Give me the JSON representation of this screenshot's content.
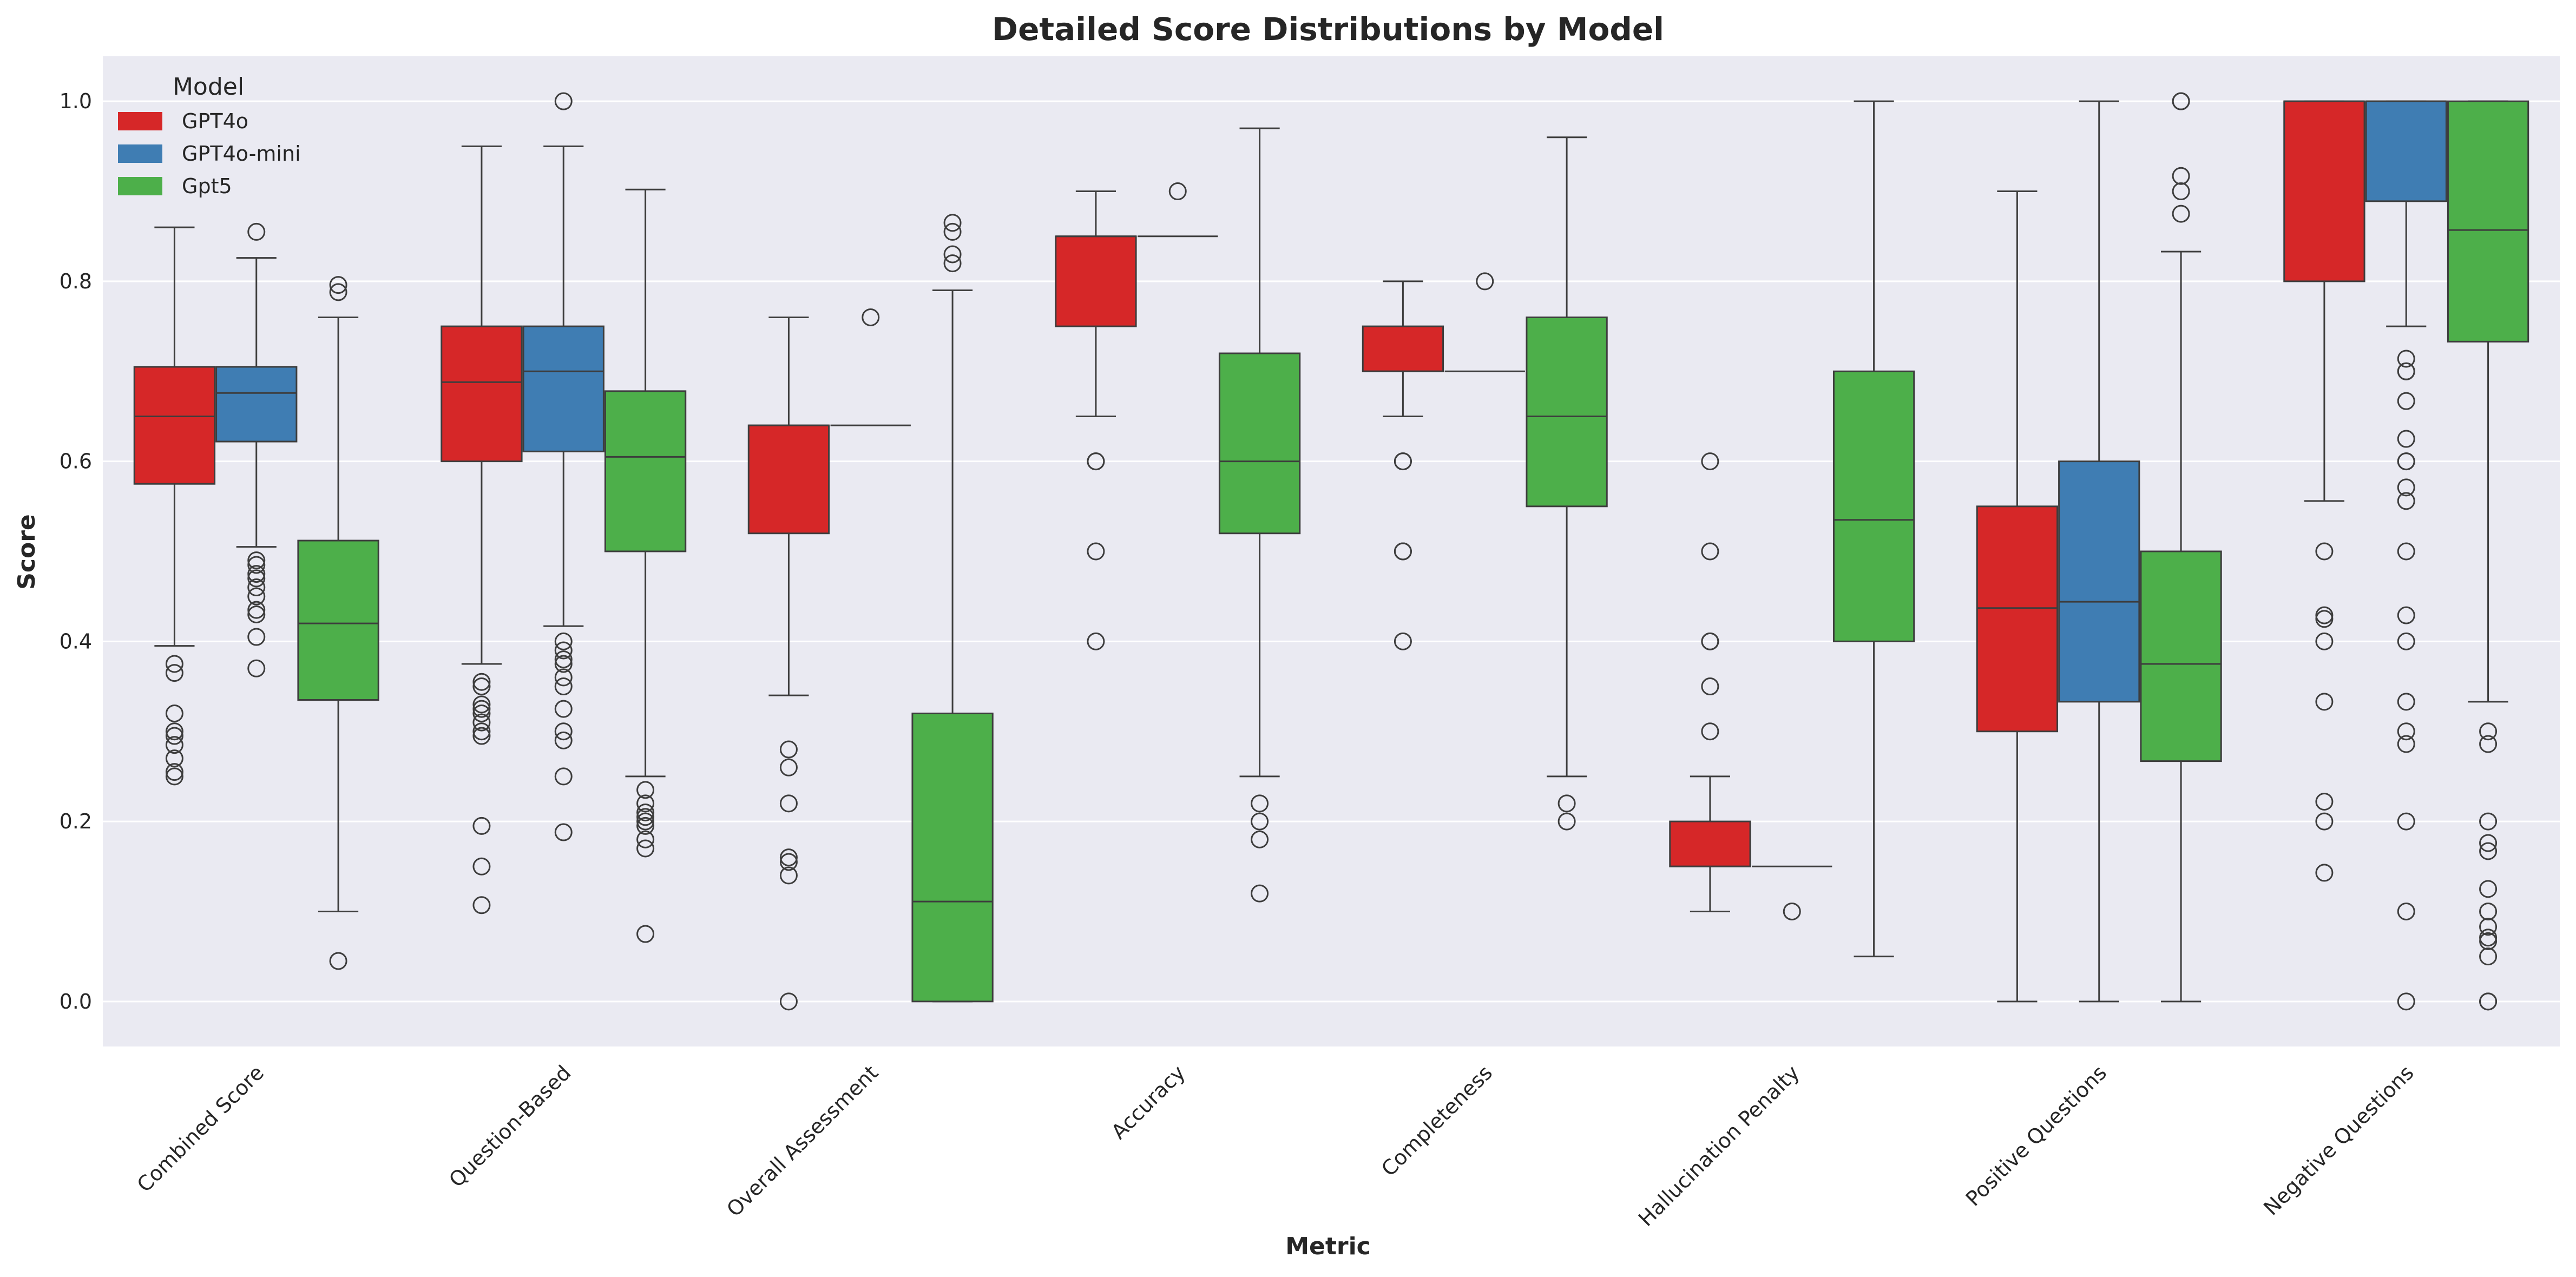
{
  "chart_data": {
    "type": "box",
    "title": "Detailed Score Distributions by Model",
    "xlabel": "Metric",
    "ylabel": "Score",
    "ylim": [
      -0.05,
      1.05
    ],
    "yticks": [
      "0.0",
      "0.2",
      "0.4",
      "0.6",
      "0.8",
      "1.0"
    ],
    "grid": true,
    "legend_title": "Model",
    "legend_placement": "top-left",
    "categories": [
      "Combined Score",
      "Question-Based",
      "Overall Assessment",
      "Accuracy",
      "Completeness",
      "Hallucination Penalty",
      "Positive Questions",
      "Negative Questions"
    ],
    "series": [
      {
        "name": "GPT4o",
        "color": "#d62728",
        "boxes": [
          {
            "whislo": 0.395,
            "q1": 0.575,
            "med": 0.65,
            "q3": 0.705,
            "whishi": 0.86,
            "fliers": [
              0.375,
              0.365,
              0.32,
              0.3,
              0.295,
              0.285,
              0.27,
              0.255,
              0.25
            ]
          },
          {
            "whislo": 0.375,
            "q1": 0.6,
            "med": 0.688,
            "q3": 0.75,
            "whishi": 0.95,
            "fliers": [
              0.355,
              0.35,
              0.33,
              0.325,
              0.32,
              0.31,
              0.3,
              0.295,
              0.195,
              0.15,
              0.107
            ]
          },
          {
            "whislo": 0.34,
            "q1": 0.52,
            "med": 0.64,
            "q3": 0.64,
            "whishi": 0.76,
            "fliers": [
              0.28,
              0.26,
              0.22,
              0.16,
              0.155,
              0.14,
              0.0
            ]
          },
          {
            "whislo": 0.65,
            "q1": 0.75,
            "med": 0.85,
            "q3": 0.85,
            "whishi": 0.9,
            "fliers": [
              0.6,
              0.6,
              0.5,
              0.4
            ]
          },
          {
            "whislo": 0.65,
            "q1": 0.7,
            "med": 0.7,
            "q3": 0.75,
            "whishi": 0.8,
            "fliers": [
              0.6,
              0.6,
              0.5,
              0.5,
              0.4
            ]
          },
          {
            "whislo": 0.1,
            "q1": 0.15,
            "med": 0.15,
            "q3": 0.2,
            "whishi": 0.25,
            "fliers": [
              0.6,
              0.5,
              0.4,
              0.4,
              0.35,
              0.3
            ]
          },
          {
            "whislo": 0.0,
            "q1": 0.3,
            "med": 0.437,
            "q3": 0.55,
            "whishi": 0.9,
            "fliers": []
          },
          {
            "whislo": 0.556,
            "q1": 0.8,
            "med": 1.0,
            "q3": 1.0,
            "whishi": 1.0,
            "fliers": [
              0.5,
              0.429,
              0.425,
              0.4,
              0.333,
              0.222,
              0.2,
              0.143
            ]
          }
        ]
      },
      {
        "name": "GPT4o-mini",
        "color": "#3f7db3",
        "boxes": [
          {
            "whislo": 0.505,
            "q1": 0.622,
            "med": 0.676,
            "q3": 0.705,
            "whishi": 0.826,
            "fliers": [
              0.855,
              0.49,
              0.485,
              0.475,
              0.47,
              0.46,
              0.45,
              0.435,
              0.43,
              0.405,
              0.37
            ]
          },
          {
            "whislo": 0.417,
            "q1": 0.611,
            "med": 0.7,
            "q3": 0.75,
            "whishi": 0.95,
            "fliers": [
              1.0,
              0.4,
              0.39,
              0.38,
              0.375,
              0.36,
              0.35,
              0.325,
              0.3,
              0.29,
              0.25,
              0.188
            ]
          },
          {
            "whislo": 0.64,
            "q1": 0.64,
            "med": 0.64,
            "q3": 0.64,
            "whishi": 0.64,
            "fliers": [
              0.76
            ]
          },
          {
            "whislo": 0.85,
            "q1": 0.85,
            "med": 0.85,
            "q3": 0.85,
            "whishi": 0.85,
            "fliers": [
              0.9
            ]
          },
          {
            "whislo": 0.7,
            "q1": 0.7,
            "med": 0.7,
            "q3": 0.7,
            "whishi": 0.7,
            "fliers": [
              0.8
            ]
          },
          {
            "whislo": 0.15,
            "q1": 0.15,
            "med": 0.15,
            "q3": 0.15,
            "whishi": 0.15,
            "fliers": [
              0.1
            ]
          },
          {
            "whislo": 0.0,
            "q1": 0.333,
            "med": 0.444,
            "q3": 0.6,
            "whishi": 1.0,
            "fliers": []
          },
          {
            "whislo": 0.75,
            "q1": 0.889,
            "med": 1.0,
            "q3": 1.0,
            "whishi": 1.0,
            "fliers": [
              0.714,
              0.7,
              0.7,
              0.667,
              0.625,
              0.6,
              0.6,
              0.571,
              0.556,
              0.5,
              0.429,
              0.4,
              0.333,
              0.3,
              0.286,
              0.2,
              0.1,
              0.0
            ]
          }
        ]
      },
      {
        "name": "Gpt5",
        "color": "#4daf4a",
        "boxes": [
          {
            "whislo": 0.1,
            "q1": 0.335,
            "med": 0.42,
            "q3": 0.512,
            "whishi": 0.76,
            "fliers": [
              0.796,
              0.788,
              0.045
            ]
          },
          {
            "whislo": 0.25,
            "q1": 0.5,
            "med": 0.605,
            "q3": 0.678,
            "whishi": 0.902,
            "fliers": [
              0.235,
              0.22,
              0.21,
              0.205,
              0.2,
              0.195,
              0.18,
              0.17,
              0.075
            ]
          },
          {
            "whislo": 0.0,
            "q1": 0.0,
            "med": 0.111,
            "q3": 0.32,
            "whishi": 0.79,
            "fliers": [
              0.865,
              0.855,
              0.83,
              0.82
            ]
          },
          {
            "whislo": 0.25,
            "q1": 0.52,
            "med": 0.6,
            "q3": 0.72,
            "whishi": 0.97,
            "fliers": [
              0.22,
              0.2,
              0.18,
              0.12
            ]
          },
          {
            "whislo": 0.25,
            "q1": 0.55,
            "med": 0.65,
            "q3": 0.76,
            "whishi": 0.96,
            "fliers": [
              0.22,
              0.2
            ]
          },
          {
            "whislo": 0.05,
            "q1": 0.4,
            "med": 0.535,
            "q3": 0.7,
            "whishi": 1.0,
            "fliers": []
          },
          {
            "whislo": 0.0,
            "q1": 0.267,
            "med": 0.375,
            "q3": 0.5,
            "whishi": 0.833,
            "fliers": [
              1.0,
              1.0,
              0.917,
              0.9,
              0.875
            ]
          },
          {
            "whislo": 0.333,
            "q1": 0.733,
            "med": 0.857,
            "q3": 1.0,
            "whishi": 1.0,
            "fliers": [
              0.3,
              0.286,
              0.2,
              0.176,
              0.167,
              0.125,
              0.1,
              0.083,
              0.071,
              0.067,
              0.05,
              0.0,
              0.0
            ]
          }
        ]
      }
    ]
  }
}
